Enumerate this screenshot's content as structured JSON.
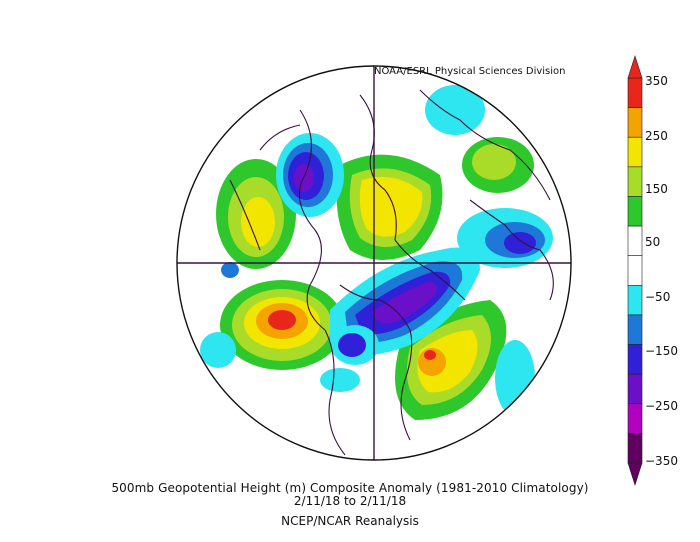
{
  "credit": "NOAA/ESRL Physical Sciences Division",
  "title": "500mb Geopotential Height (m) Composite Anomaly (1981-2010 Climatology)",
  "dates": "2/11/18  to 2/11/18",
  "source": "NCEP/NCAR Reanalysis",
  "colorbar": {
    "labels": [
      "350",
      "250",
      "150",
      "50",
      "−50",
      "−150",
      "−250",
      "−350"
    ],
    "colors": [
      "#e8261c",
      "#f5a300",
      "#f2e600",
      "#a8dc28",
      "#2fc82c",
      "#ffffff",
      "#ffffff",
      "#2ee6f0",
      "#1e78d8",
      "#3020d8",
      "#6a10c8",
      "#b000c0",
      "#600060"
    ]
  }
}
